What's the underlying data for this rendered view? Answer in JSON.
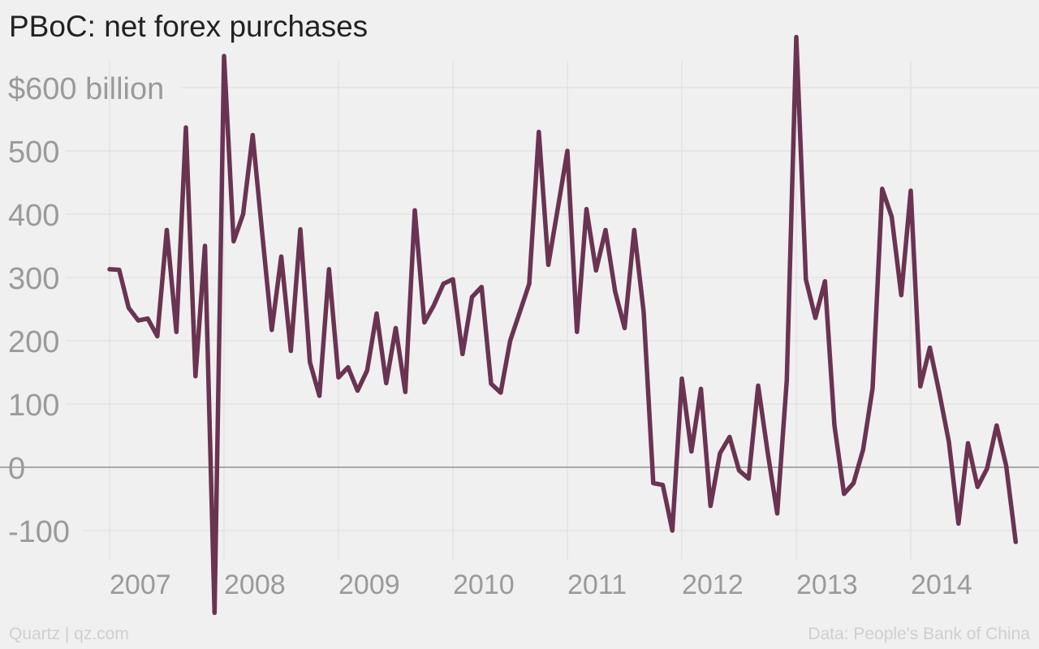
{
  "chart_data": {
    "type": "line",
    "title": "PBoC: net forex purchases",
    "xlabel": "",
    "ylabel": "",
    "unit_label": "$600 billion",
    "ylim": [
      -130,
      660
    ],
    "yticks": [
      600,
      500,
      400,
      300,
      200,
      100,
      0,
      -100
    ],
    "ytick_labels": [
      "$600 billion",
      "500",
      "400",
      "300",
      "200",
      "100",
      "0",
      "-100"
    ],
    "xticks": [
      2007,
      2008,
      2009,
      2010,
      2011,
      2012,
      2013,
      2014
    ],
    "xtick_labels": [
      "2007",
      "2008",
      "2009",
      "2010",
      "2011",
      "2012",
      "2013",
      "2014"
    ],
    "grid": true,
    "line_color": "#6b3352",
    "series": [
      {
        "x": [
          "2007-01",
          "2007-02",
          "2007-03",
          "2007-04",
          "2007-05",
          "2007-06",
          "2007-07",
          "2007-08",
          "2007-09",
          "2007-10",
          "2007-11",
          "2007-12",
          "2008-01",
          "2008-02",
          "2008-03",
          "2008-04",
          "2008-05",
          "2008-06",
          "2008-07",
          "2008-08",
          "2008-09",
          "2008-10",
          "2008-11",
          "2008-12",
          "2009-01",
          "2009-02",
          "2009-03",
          "2009-04",
          "2009-05",
          "2009-06",
          "2009-07",
          "2009-08",
          "2009-09",
          "2009-10",
          "2009-11",
          "2009-12",
          "2010-01",
          "2010-02",
          "2010-03",
          "2010-04",
          "2010-05",
          "2010-06",
          "2010-07",
          "2010-08",
          "2010-09",
          "2010-10",
          "2010-11",
          "2010-12",
          "2011-01",
          "2011-02",
          "2011-03",
          "2011-04",
          "2011-05",
          "2011-06",
          "2011-07",
          "2011-08",
          "2011-09",
          "2011-10",
          "2011-11",
          "2011-12",
          "2012-01",
          "2012-02",
          "2012-03",
          "2012-04",
          "2012-05",
          "2012-06",
          "2012-07",
          "2012-08",
          "2012-09",
          "2012-10",
          "2012-11",
          "2012-12",
          "2013-01",
          "2013-02",
          "2013-03",
          "2013-04",
          "2013-05",
          "2013-06",
          "2013-07",
          "2013-08",
          "2013-09",
          "2013-10",
          "2013-11",
          "2013-12",
          "2014-01",
          "2014-02",
          "2014-03",
          "2014-04",
          "2014-05",
          "2014-06",
          "2014-07",
          "2014-08",
          "2014-09",
          "2014-10",
          "2014-11",
          "2014-12"
        ],
        "values": [
          313,
          312,
          252,
          232,
          235,
          207,
          375,
          214,
          537,
          144,
          350,
          -230,
          650,
          357,
          400,
          525,
          370,
          217,
          333,
          184,
          376,
          166,
          113,
          313,
          142,
          158,
          121,
          153,
          243,
          133,
          220,
          119,
          406,
          229,
          256,
          290,
          297,
          179,
          269,
          285,
          132,
          118,
          200,
          245,
          290,
          530,
          320,
          410,
          500,
          214,
          408,
          311,
          375,
          278,
          220,
          375,
          245,
          -25,
          -28,
          -100,
          140,
          25,
          124,
          -61,
          22,
          48,
          -5,
          -18,
          129,
          23,
          -73,
          138,
          680,
          297,
          236,
          294,
          66,
          -42,
          -25,
          28,
          125,
          440,
          396,
          272,
          437,
          128,
          189,
          117,
          40,
          -89,
          38,
          -31,
          -2,
          66,
          3,
          -118
        ]
      }
    ]
  },
  "footer": {
    "source_left": "Quartz | qz.com",
    "source_right": "Data: People's Bank of China"
  }
}
